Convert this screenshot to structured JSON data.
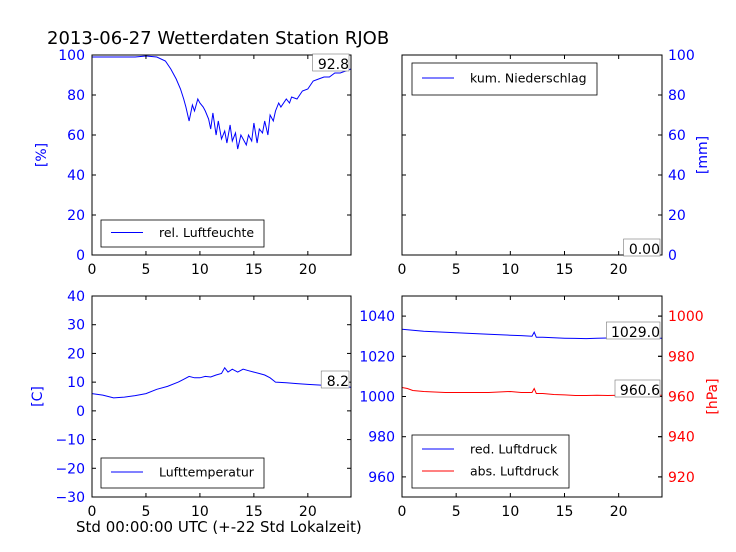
{
  "title": "2013-06-27 Wetterdaten Station RJOB",
  "xlabel": "Std 00:00:00 UTC (+-22 Std Lokalzeit)",
  "colors": {
    "blue": "#0000ff",
    "red": "#ff0000",
    "red_box": "#f4c4c4"
  },
  "chart_data": [
    {
      "type": "line",
      "panel": "top-left",
      "ylabel": "[%]",
      "ylim": [
        0,
        100
      ],
      "yticks": [
        0,
        20,
        40,
        60,
        80,
        100
      ],
      "xlim": [
        0,
        24
      ],
      "xticks": [
        0,
        5,
        10,
        15,
        20
      ],
      "legend": "lower-left",
      "value_label": "92.8",
      "series": [
        {
          "name": "rel. Luftfeuchte",
          "color": "#0000ff",
          "x": [
            0,
            1,
            2,
            3,
            4,
            5,
            6,
            6.8,
            7.3,
            7.8,
            8.2,
            8.5,
            8.7,
            9,
            9.3,
            9.5,
            9.8,
            10,
            10.3,
            10.5,
            10.8,
            11,
            11.2,
            11.5,
            11.7,
            12,
            12.3,
            12.5,
            12.8,
            13,
            13.3,
            13.5,
            13.8,
            14,
            14.3,
            14.5,
            14.8,
            15,
            15.3,
            15.5,
            15.8,
            16,
            16.3,
            16.5,
            16.8,
            17,
            17.3,
            17.5,
            18,
            18.3,
            18.5,
            19,
            19.5,
            20,
            20.5,
            21,
            21.5,
            22,
            22.5,
            23,
            23.5,
            24
          ],
          "y": [
            99,
            99,
            99,
            99,
            99,
            99.5,
            99,
            97,
            93,
            88,
            83,
            78,
            74,
            67,
            75,
            72,
            78,
            76,
            74,
            72,
            68,
            63,
            71,
            60,
            67,
            58,
            62,
            56,
            65,
            57,
            61,
            53,
            60,
            58,
            55,
            60,
            57,
            66,
            56,
            63,
            61,
            67,
            60,
            70,
            67,
            72,
            76,
            74,
            78,
            76,
            79,
            78,
            82,
            83,
            87,
            88,
            89,
            89,
            91,
            91,
            92,
            93
          ]
        }
      ]
    },
    {
      "type": "line",
      "panel": "top-right",
      "ylabel": "[mm]",
      "ylim": [
        0,
        100
      ],
      "yticks": [
        0,
        20,
        40,
        60,
        80,
        100
      ],
      "xlim": [
        0,
        24
      ],
      "xticks": [
        0,
        5,
        10,
        15,
        20
      ],
      "legend": "upper-left",
      "value_label": "0.00",
      "series": [
        {
          "name": "kum. Niederschlag",
          "color": "#0000ff",
          "x": [
            0,
            24
          ],
          "y": [
            0,
            0
          ]
        }
      ]
    },
    {
      "type": "line",
      "panel": "bottom-left",
      "ylabel": "[C]",
      "ylim": [
        -30,
        40
      ],
      "yticks": [
        -30,
        -20,
        -10,
        0,
        10,
        20,
        30,
        40
      ],
      "xlim": [
        0,
        24
      ],
      "xticks": [
        0,
        5,
        10,
        15,
        20
      ],
      "legend": "lower-left",
      "value_label": "8.2",
      "series": [
        {
          "name": "Lufttemperatur",
          "color": "#0000ff",
          "x": [
            0,
            1,
            2,
            3,
            4,
            5,
            6,
            7,
            8,
            8.5,
            9,
            9.5,
            10,
            10.5,
            11,
            11.5,
            12,
            12.3,
            12.6,
            13,
            13.5,
            14,
            14.5,
            15,
            15.5,
            16,
            16.5,
            17,
            18,
            19,
            20,
            21,
            22,
            23,
            24
          ],
          "y": [
            6,
            5.5,
            4.5,
            4.8,
            5.3,
            6,
            7.5,
            8.5,
            10,
            11,
            12,
            11.5,
            11.5,
            12,
            11.8,
            12.5,
            13,
            15,
            13.5,
            14.5,
            13.5,
            14.5,
            14,
            13.5,
            13,
            12.5,
            11.5,
            10,
            9.8,
            9.5,
            9.2,
            9,
            8.8,
            8.5,
            8.2
          ]
        }
      ]
    },
    {
      "type": "line",
      "panel": "bottom-right",
      "ylabel": "[hPa]",
      "ylim": [
        950,
        1050
      ],
      "yticks": [
        960,
        980,
        1000,
        1020,
        1040
      ],
      "y2lim": [
        910,
        1010
      ],
      "y2ticks": [
        920,
        940,
        960,
        980,
        1000
      ],
      "xlim": [
        0,
        24
      ],
      "xticks": [
        0,
        5,
        10,
        15,
        20
      ],
      "legend": "lower-left",
      "value_label": "1029.0",
      "value_label_2": "960.6",
      "series": [
        {
          "name": "red. Luftdruck",
          "color": "#0000ff",
          "axis": "left",
          "x": [
            0,
            1,
            2,
            4,
            6,
            8,
            10,
            11,
            12,
            12.2,
            12.4,
            13,
            14,
            15,
            16,
            17,
            18,
            19,
            20,
            22,
            24
          ],
          "y": [
            1033.5,
            1033,
            1032.5,
            1032,
            1031.5,
            1031,
            1030.5,
            1030.3,
            1030,
            1032,
            1029.5,
            1029.5,
            1029.2,
            1029,
            1028.9,
            1028.8,
            1029,
            1029.1,
            1029.2,
            1029.1,
            1029
          ]
        },
        {
          "name": "abs. Luftdruck",
          "color": "#ff0000",
          "axis": "right",
          "x": [
            0,
            0.5,
            1,
            2,
            4,
            6,
            8,
            10,
            11,
            12,
            12.2,
            12.4,
            13,
            14,
            15,
            16,
            17,
            18,
            19,
            20,
            22,
            24
          ],
          "y": [
            964.5,
            964,
            963,
            962.5,
            962,
            962,
            962,
            962.5,
            962,
            962,
            964,
            961.5,
            961.5,
            961,
            960.8,
            960.5,
            960.5,
            960.6,
            960.5,
            960.6,
            960.6,
            960.6
          ]
        }
      ]
    }
  ]
}
